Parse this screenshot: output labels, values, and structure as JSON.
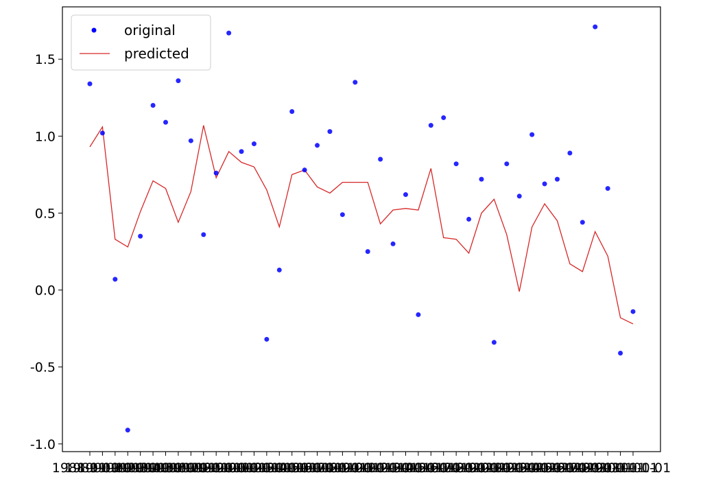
{
  "chart_data": {
    "type": "scatter",
    "title": "",
    "xlabel": "",
    "ylabel": "",
    "ylim": [
      -1.05,
      1.84
    ],
    "yticks": [
      "1.5",
      "1.0",
      "0.5",
      "0.0",
      "-0.5",
      "-1.0"
    ],
    "ytick_values": [
      1.5,
      1.0,
      0.5,
      0.0,
      -0.5,
      -1.0
    ],
    "xtick_labels": [
      "1988-01-01",
      "1989-01-01",
      "1990-01-01",
      "1991-01-01",
      "1992-01-01",
      "1993-01-01",
      "1994-01-01",
      "1995-01-01",
      "1996-01-01",
      "1997-01-01",
      "1998-01-01",
      "1999-01-01",
      "2000-01-01",
      "2001-01-01",
      "2002-01-01",
      "2003-01-01",
      "2004-01-01",
      "2005-01-01",
      "2006-01-01",
      "2007-01-01",
      "2008-01-01",
      "2009-01-01",
      "2010-01-01",
      "2011-01-01",
      "2012-01-01",
      "2013-01-01",
      "2014-01-01",
      "2015-01-01",
      "2016-01-01",
      "2017-01-01",
      "2018-01-01",
      "2019-01-01",
      "2020-01-01",
      "2021-01-01",
      "2022-01-01",
      "2023-01-01",
      "2024-01-01",
      "2025-01-01",
      "2026-01-01",
      "2027-01-01",
      "2028-01-01",
      "2029-01-01",
      "2030-01-01",
      "2031-01-01"
    ],
    "grid": false,
    "legend_position": "upper-left",
    "series": [
      {
        "name": "original",
        "kind": "scatter",
        "color": "#0000ff",
        "values": [
          1.34,
          1.02,
          0.07,
          -0.91,
          0.35,
          1.2,
          1.09,
          1.36,
          0.97,
          0.36,
          0.76,
          1.67,
          0.9,
          0.95,
          -0.32,
          0.13,
          1.16,
          0.78,
          0.94,
          1.03,
          0.49,
          1.35,
          0.25,
          0.85,
          0.3,
          0.62,
          -0.16,
          1.07,
          1.12,
          0.82,
          0.46,
          0.72,
          -0.34,
          0.82,
          0.61,
          1.01,
          0.69,
          0.72,
          0.89,
          0.44,
          1.71,
          0.66,
          -0.41,
          -0.14
        ]
      },
      {
        "name": "predicted",
        "kind": "line",
        "color": "#d62728",
        "values": [
          0.93,
          1.06,
          0.33,
          0.28,
          0.51,
          0.71,
          0.66,
          0.44,
          0.64,
          1.07,
          0.73,
          0.9,
          0.83,
          0.8,
          0.65,
          0.41,
          0.75,
          0.78,
          0.67,
          0.63,
          0.7,
          0.7,
          0.7,
          0.43,
          0.52,
          0.53,
          0.52,
          0.79,
          0.34,
          0.33,
          0.24,
          0.5,
          0.59,
          0.36,
          -0.01,
          0.41,
          0.56,
          0.45,
          0.17,
          0.12,
          0.38,
          0.22,
          -0.18,
          -0.22
        ]
      }
    ]
  }
}
